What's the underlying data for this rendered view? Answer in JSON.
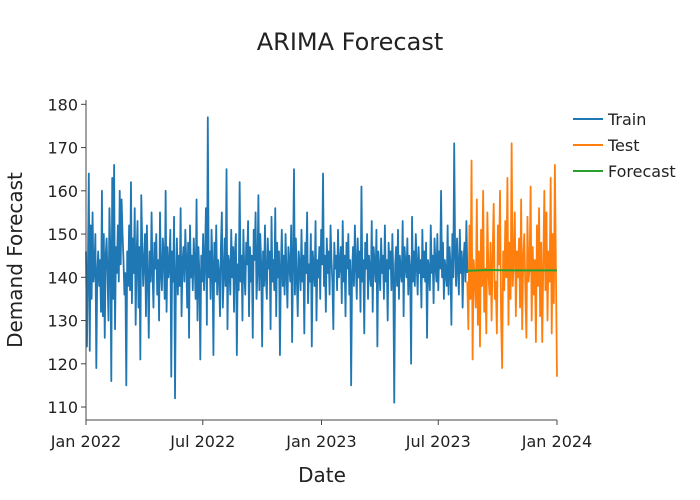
{
  "chart_data": {
    "type": "line",
    "title": "ARIMA Forecast",
    "xlabel": "Date",
    "ylabel": "Demand Forecast",
    "x_range": [
      "2022-01-01",
      "2024-01-01"
    ],
    "ylim": [
      107,
      181
    ],
    "x_ticks": [
      {
        "date": "2022-01-01",
        "label": "Jan 2022"
      },
      {
        "date": "2022-07-01",
        "label": "Jul 2022"
      },
      {
        "date": "2023-01-01",
        "label": "Jan 2023"
      },
      {
        "date": "2023-07-01",
        "label": "Jul 2023"
      },
      {
        "date": "2024-01-01",
        "label": "Jan 2024"
      }
    ],
    "y_ticks": [
      110,
      120,
      130,
      140,
      150,
      160,
      170,
      180
    ],
    "grid": false,
    "legend_position": "top-right",
    "series": [
      {
        "name": "Train",
        "color": "#1f77b4",
        "date_range": [
          "2022-01-01",
          "2023-08-15"
        ],
        "values": [
          146,
          124,
          141,
          164,
          123,
          152,
          135,
          155,
          139,
          142,
          150,
          119,
          141,
          146,
          138,
          144,
          132,
          160,
          131,
          150,
          126,
          145,
          149,
          140,
          130,
          156,
          146,
          116,
          163,
          135,
          166,
          128,
          147,
          141,
          152,
          139,
          160,
          143,
          158,
          150,
          144,
          136,
          141,
          115,
          146,
          138,
          152,
          137,
          162,
          134,
          149,
          141,
          156,
          129,
          145,
          153,
          133,
          147,
          121,
          159,
          148,
          138,
          144,
          150,
          131,
          152,
          140,
          126,
          146,
          139,
          155,
          141,
          133,
          148,
          142,
          150,
          136,
          144,
          130,
          155,
          141,
          137,
          149,
          145,
          135,
          160,
          132,
          147,
          140,
          143,
          151,
          117,
          146,
          139,
          154,
          112,
          140,
          149,
          136,
          145,
          138,
          156,
          131,
          143,
          147,
          139,
          151,
          144,
          133,
          148,
          126,
          152,
          140,
          145,
          137,
          149,
          143,
          135,
          158,
          130,
          147,
          141,
          121,
          145,
          139,
          150,
          137,
          144,
          156,
          129,
          177,
          140,
          146,
          135,
          151,
          143,
          122,
          148,
          139,
          152,
          136,
          144,
          141,
          131,
          147,
          155,
          133,
          140,
          149,
          138,
          165,
          128,
          145,
          143,
          136,
          151,
          140,
          147,
          132,
          146,
          150,
          122,
          143,
          137,
          162,
          139,
          145,
          130,
          151,
          141,
          136,
          148,
          143,
          153,
          131,
          147,
          139,
          145,
          126,
          151,
          144,
          155,
          135,
          141,
          159,
          137,
          150,
          143,
          124,
          146,
          138,
          152,
          140,
          135,
          149,
          142,
          146,
          128,
          154,
          139,
          144,
          137,
          156,
          131,
          148,
          140,
          146,
          122,
          142,
          151,
          138,
          145,
          136,
          150,
          141,
          133,
          147,
          143,
          139,
          152,
          125,
          144,
          165,
          136,
          149,
          140,
          131,
          146,
          143,
          137,
          151,
          139,
          145,
          127,
          148,
          141,
          155,
          134,
          143,
          139,
          150,
          124,
          146,
          142,
          138,
          153,
          130,
          144,
          140,
          147,
          135,
          151,
          143,
          164,
          138,
          145,
          132,
          149,
          141,
          146,
          136,
          152,
          144,
          139,
          128,
          148,
          142,
          145,
          137,
          151,
          140,
          143,
          147,
          134,
          153,
          139,
          145,
          131,
          148,
          142,
          150,
          136,
          144,
          115,
          141,
          147,
          138,
          152,
          143,
          135,
          149,
          140,
          146,
          132,
          161,
          139,
          144,
          127,
          148,
          142,
          150,
          135,
          145,
          141,
          138,
          153,
          132,
          147,
          143,
          139,
          151,
          124,
          146,
          142,
          137,
          149,
          141,
          145,
          135,
          152,
          139,
          144,
          130,
          148,
          142,
          146,
          137,
          150,
          140,
          111,
          143,
          147,
          138,
          151,
          135,
          145,
          141,
          139,
          153,
          131,
          147,
          143,
          140,
          149,
          136,
          145,
          142,
          120,
          154,
          139,
          146,
          138,
          150,
          143,
          136,
          147,
          141,
          144,
          133,
          151,
          140,
          146,
          139,
          148,
          126,
          144,
          142,
          137,
          152,
          141,
          145,
          134,
          149,
          143,
          139,
          150,
          137,
          146,
          142,
          160,
          140,
          148,
          135,
          144,
          141,
          138,
          152,
          136,
          147,
          143,
          129,
          150,
          140,
          171,
          145,
          138,
          149,
          142,
          136,
          151,
          141,
          146,
          133,
          144,
          148,
          139,
          153,
          141
        ]
      },
      {
        "name": "Test",
        "color": "#ff7f0e",
        "date_range": [
          "2023-08-15",
          "2024-01-01"
        ],
        "values": [
          139,
          128,
          152,
          135,
          167,
          121,
          144,
          140,
          133,
          158,
          129,
          146,
          124,
          151,
          138,
          160,
          132,
          142,
          127,
          155,
          141,
          136,
          148,
          130,
          145,
          157,
          135,
          139,
          127,
          152,
          143,
          160,
          131,
          119,
          146,
          137,
          153,
          140,
          163,
          129,
          148,
          135,
          171,
          138,
          144,
          155,
          131,
          146,
          140,
          149,
          133,
          158,
          128,
          145,
          150,
          137,
          126,
          154,
          139,
          142,
          161,
          130,
          147,
          136,
          144,
          125,
          152,
          138,
          156,
          131,
          148,
          125,
          143,
          160,
          137,
          155,
          130,
          146,
          139,
          163,
          127,
          150,
          134,
          166,
          141,
          117
        ]
      },
      {
        "name": "Forecast",
        "color": "#2ca02c",
        "date_range": [
          "2023-08-15",
          "2024-01-01"
        ],
        "values": [
          141.5,
          141.7,
          141.6,
          141.6,
          141.6
        ]
      }
    ]
  }
}
